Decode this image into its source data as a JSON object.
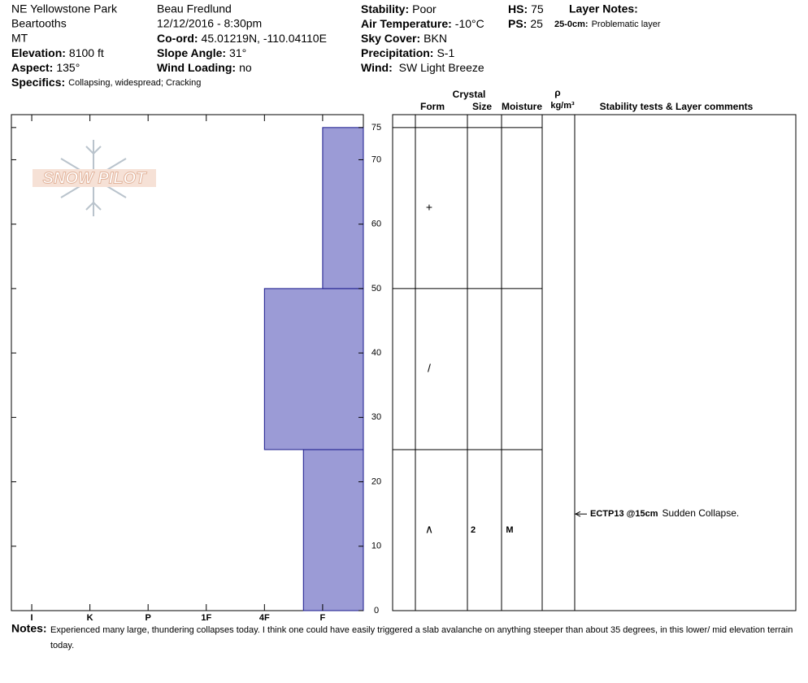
{
  "header": {
    "location": "NE Yellowstone Park",
    "range": "Beartooths",
    "state": "MT",
    "fields_left": [
      {
        "label": "Elevation:",
        "value": "8100 ft"
      },
      {
        "label": "Aspect:",
        "value": "135°"
      },
      {
        "label": "Specifics:",
        "value": "Collapsing, widespread; Cracking"
      }
    ],
    "observer": "Beau  Fredlund",
    "datetime": "12/12/2016 - 8:30pm",
    "fields_mid": [
      {
        "label": "Co-ord:",
        "value": "45.01219N, -110.04110E"
      },
      {
        "label": "Slope Angle:",
        "value": "31°"
      },
      {
        "label": "Wind Loading:",
        "value": "no"
      }
    ],
    "fields_right": [
      {
        "label": "Stability:",
        "value": "Poor"
      },
      {
        "label": "Air Temperature:",
        "value": "-10°C"
      },
      {
        "label": "Sky Cover:",
        "value": "BKN"
      },
      {
        "label": "Precipitation:",
        "value": "S-1"
      },
      {
        "label": "Wind:",
        "value": " SW Light Breeze"
      }
    ],
    "hs": {
      "label": "HS:",
      "value": "75"
    },
    "ps": {
      "label": "PS:",
      "value": "25"
    },
    "layer_notes_title": "Layer Notes:",
    "layer_notes": [
      {
        "label": "25-0cm:",
        "value": "Problematic layer"
      }
    ]
  },
  "logo": "SNOW PILOT",
  "chart_data": {
    "type": "snow_profile",
    "color": "#9b9bd6",
    "edge_color": "#1a1a8c",
    "ylim": [
      0,
      77
    ],
    "yticks": [
      0,
      10,
      20,
      30,
      40,
      50,
      60,
      70,
      75
    ],
    "xlim": [
      0.3,
      6.35
    ],
    "xticks": [
      {
        "value": 6,
        "label": "I"
      },
      {
        "value": 5,
        "label": "K"
      },
      {
        "value": 4,
        "label": "P"
      },
      {
        "value": 3,
        "label": "1F"
      },
      {
        "value": 2,
        "label": "4F"
      },
      {
        "value": 1,
        "label": "F"
      }
    ],
    "layers": {
      "bottom": [
        0,
        25,
        50
      ],
      "top": [
        25,
        50,
        75
      ],
      "hardness": [
        1.33,
        2,
        1
      ],
      "form": [
        "∧",
        "/",
        "+"
      ],
      "size": [
        2,
        null,
        null
      ],
      "moisture": [
        "M",
        null,
        null
      ]
    },
    "table_headers": {
      "crystal": "Crystal",
      "form": "Form",
      "size": "Size",
      "moisture": "Moisture",
      "density": "ρ",
      "density_unit": "kg/m³",
      "comments": "Stability tests & Layer comments"
    },
    "tests": [
      {
        "height": 15,
        "code": "ECTP13 @15cm",
        "comment": "Sudden Collapse."
      }
    ]
  },
  "notes": {
    "label": "Notes:",
    "text": "Experienced many large, thundering collapses today.  I think one could have easily triggered a slab avalanche on anything steeper than about 35 degrees, in this lower/ mid elevation terrain today."
  }
}
